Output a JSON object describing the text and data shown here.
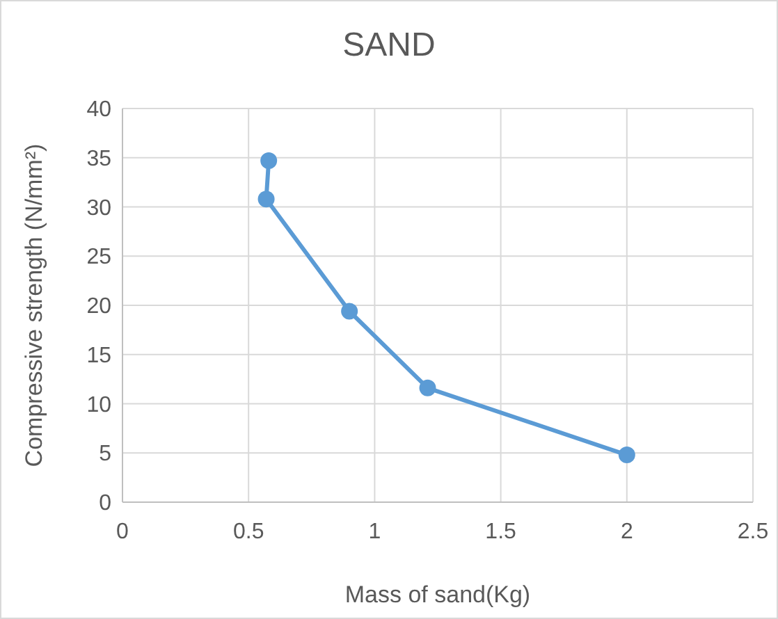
{
  "chart_data": {
    "type": "line",
    "title": "SAND",
    "xlabel": "Mass of sand(Kg)",
    "ylabel": "Compressive strength (N/mm²)",
    "series": [
      {
        "color": "#5b9bd5",
        "x": [
          0.58,
          0.57,
          0.9,
          1.21,
          2.0
        ],
        "values": [
          34.7,
          30.8,
          19.4,
          11.6,
          4.8
        ]
      }
    ],
    "xlim": [
      0,
      2.5
    ],
    "xticks": [
      0,
      0.5,
      1,
      1.5,
      2,
      2.5
    ],
    "ylim": [
      0,
      40
    ],
    "yticks": [
      0,
      5,
      10,
      15,
      20,
      25,
      30,
      35,
      40
    ],
    "grid": true,
    "marker": "circle",
    "line_style": "solid"
  }
}
